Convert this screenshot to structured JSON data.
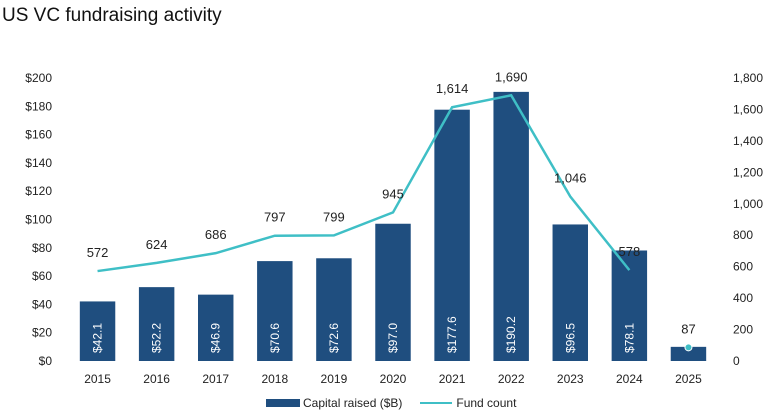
{
  "chart_data": {
    "type": "bar",
    "title": "US VC fundraising activity",
    "categories": [
      "2015",
      "2016",
      "2017",
      "2018",
      "2019",
      "2020",
      "2021",
      "2022",
      "2023",
      "2024",
      "2025"
    ],
    "series": [
      {
        "name": "Capital raised ($B)",
        "type": "bar",
        "axis": "left",
        "values": [
          42.1,
          52.2,
          46.9,
          70.6,
          72.6,
          97.0,
          177.6,
          190.2,
          96.5,
          78.1,
          10
        ],
        "labels": [
          "$42.1",
          "$52.2",
          "$46.9",
          "$70.6",
          "$72.6",
          "$97.0",
          "$177.6",
          "$190.2",
          "$96.5",
          "$78.1",
          ""
        ],
        "color": "#1f4e7f"
      },
      {
        "name": "Fund count",
        "type": "line",
        "axis": "right",
        "values": [
          572,
          624,
          686,
          797,
          799,
          945,
          1614,
          1690,
          1046,
          578,
          87
        ],
        "labels": [
          "572",
          "624",
          "686",
          "797",
          "799",
          "945",
          "1,614",
          "1,690",
          "1,046",
          "578",
          "87"
        ],
        "color": "#3fbfc6"
      }
    ],
    "y_left": {
      "ylim": [
        0,
        200
      ],
      "ticks": [
        "$0",
        "$20",
        "$40",
        "$60",
        "$80",
        "$100",
        "$120",
        "$140",
        "$160",
        "$180",
        "$200"
      ]
    },
    "y_right": {
      "ylim": [
        0,
        1800
      ],
      "ticks": [
        "0",
        "200",
        "400",
        "600",
        "800",
        "1,000",
        "1,200",
        "1,400",
        "1,600",
        "1,800"
      ]
    },
    "xlabel": "",
    "ylabel": "",
    "grid": false,
    "legend": "bottom-center"
  },
  "legend": {
    "bar_label": "Capital raised ($B)",
    "line_label": "Fund count"
  }
}
